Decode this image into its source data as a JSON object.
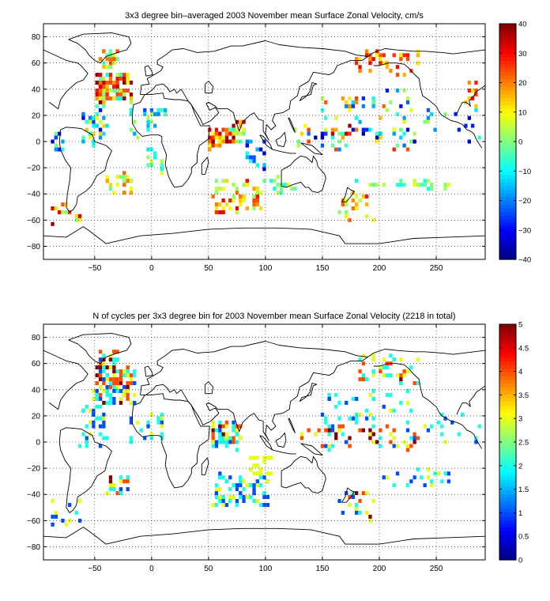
{
  "figure": {
    "background": "#ffffff",
    "land_color": "#ffffff",
    "coast_color": "#000000",
    "colormap": "jet"
  },
  "chart_data": [
    {
      "type": "heatmap",
      "title": "3x3 degree bin–averaged 2003 November mean Surface Zonal Velocity, cm/s",
      "xlabel": "",
      "ylabel": "",
      "xlim": [
        -95,
        293
      ],
      "ylim": [
        -90,
        90
      ],
      "xticks": [
        -50,
        0,
        50,
        100,
        150,
        200,
        250
      ],
      "yticks": [
        -80,
        -60,
        -40,
        -20,
        0,
        20,
        40,
        60,
        80
      ],
      "grid": true,
      "grid_style": "dotted",
      "bin_size_deg": 3,
      "colorbar": {
        "min": -40,
        "max": 40,
        "ticks": [
          -40,
          -30,
          -20,
          -10,
          0,
          10,
          20,
          30,
          40
        ]
      },
      "clusters": [
        {
          "lon": [
            -48,
            -18
          ],
          "lat": [
            30,
            52
          ],
          "count": 110,
          "values": [
            -10,
            40
          ]
        },
        {
          "lon": [
            -60,
            -40
          ],
          "lat": [
            -5,
            28
          ],
          "count": 35,
          "values": [
            -30,
            15
          ]
        },
        {
          "lon": [
            -45,
            -30
          ],
          "lat": [
            55,
            70
          ],
          "count": 25,
          "values": [
            -5,
            25
          ]
        },
        {
          "lon": [
            -20,
            12
          ],
          "lat": [
            0,
            25
          ],
          "count": 25,
          "values": [
            -25,
            5
          ]
        },
        {
          "lon": [
            -5,
            12
          ],
          "lat": [
            -30,
            -5
          ],
          "count": 12,
          "values": [
            -15,
            10
          ]
        },
        {
          "lon": [
            -40,
            -15
          ],
          "lat": [
            -40,
            -25
          ],
          "count": 25,
          "values": [
            -5,
            25
          ]
        },
        {
          "lon": [
            -88,
            -62
          ],
          "lat": [
            -65,
            -45
          ],
          "count": 14,
          "values": [
            -5,
            40
          ]
        },
        {
          "lon": [
            -90,
            -75
          ],
          "lat": [
            -10,
            10
          ],
          "count": 10,
          "values": [
            -40,
            5
          ]
        },
        {
          "lon": [
            50,
            70
          ],
          "lat": [
            -5,
            10
          ],
          "count": 45,
          "values": [
            5,
            40
          ]
        },
        {
          "lon": [
            68,
            82
          ],
          "lat": [
            -2,
            15
          ],
          "count": 25,
          "values": [
            -10,
            40
          ]
        },
        {
          "lon": [
            55,
            95
          ],
          "lat": [
            -55,
            -30
          ],
          "count": 70,
          "values": [
            0,
            32
          ]
        },
        {
          "lon": [
            82,
            100
          ],
          "lat": [
            -20,
            5
          ],
          "count": 20,
          "values": [
            -35,
            -5
          ]
        },
        {
          "lon": [
            95,
            130
          ],
          "lat": [
            -40,
            -25
          ],
          "count": 15,
          "values": [
            -10,
            10
          ]
        },
        {
          "lon": [
            125,
            230
          ],
          "lat": [
            -5,
            12
          ],
          "count": 60,
          "values": [
            -40,
            40
          ]
        },
        {
          "lon": [
            180,
            235
          ],
          "lat": [
            50,
            68
          ],
          "count": 40,
          "values": [
            10,
            32
          ]
        },
        {
          "lon": [
            150,
            230
          ],
          "lat": [
            15,
            38
          ],
          "count": 40,
          "values": [
            -30,
            25
          ]
        },
        {
          "lon": [
            160,
            200
          ],
          "lat": [
            -60,
            -40
          ],
          "count": 20,
          "values": [
            0,
            30
          ]
        },
        {
          "lon": [
            175,
            262
          ],
          "lat": [
            -35,
            -30
          ],
          "count": 25,
          "values": [
            -10,
            10
          ]
        },
        {
          "lon": [
            240,
            290
          ],
          "lat": [
            0,
            25
          ],
          "count": 15,
          "values": [
            -35,
            5
          ]
        },
        {
          "lon": [
            275,
            292
          ],
          "lat": [
            25,
            45
          ],
          "count": 10,
          "values": [
            5,
            30
          ]
        }
      ]
    },
    {
      "type": "heatmap",
      "title": "N of cycles per 3x3 degree bin for 2003 November mean Surface Zonal Velocity (2218 in total)",
      "xlabel": "",
      "ylabel": "",
      "xlim": [
        -95,
        293
      ],
      "ylim": [
        -90,
        90
      ],
      "xticks": [
        -50,
        0,
        50,
        100,
        150,
        200,
        250
      ],
      "yticks": [
        -80,
        -60,
        -40,
        -20,
        0,
        20,
        40,
        60,
        80
      ],
      "grid": true,
      "grid_style": "dotted",
      "bin_size_deg": 3,
      "colorbar": {
        "min": 0,
        "max": 5,
        "ticks": [
          0,
          0.5,
          1,
          1.5,
          2,
          2.5,
          3,
          3.5,
          4,
          4.5,
          5
        ]
      },
      "clusters": [
        {
          "lon": [
            -50,
            -15
          ],
          "lat": [
            30,
            58
          ],
          "count": 110,
          "values": [
            1,
            5
          ]
        },
        {
          "lon": [
            -62,
            -40
          ],
          "lat": [
            -5,
            28
          ],
          "count": 35,
          "values": [
            1,
            3
          ]
        },
        {
          "lon": [
            -45,
            -30
          ],
          "lat": [
            55,
            70
          ],
          "count": 20,
          "values": [
            1,
            5
          ]
        },
        {
          "lon": [
            -20,
            12
          ],
          "lat": [
            0,
            25
          ],
          "count": 25,
          "values": [
            1,
            3
          ]
        },
        {
          "lon": [
            -40,
            -15
          ],
          "lat": [
            -40,
            -25
          ],
          "count": 25,
          "values": [
            1,
            5
          ]
        },
        {
          "lon": [
            -88,
            -62
          ],
          "lat": [
            -65,
            -45
          ],
          "count": 12,
          "values": [
            1,
            3
          ]
        },
        {
          "lon": [
            52,
            78
          ],
          "lat": [
            -5,
            15
          ],
          "count": 60,
          "values": [
            1,
            5
          ]
        },
        {
          "lon": [
            55,
            105
          ],
          "lat": [
            -48,
            -25
          ],
          "count": 70,
          "values": [
            1,
            3
          ]
        },
        {
          "lon": [
            85,
            105
          ],
          "lat": [
            -25,
            -10
          ],
          "count": 25,
          "values": [
            3,
            3
          ]
        },
        {
          "lon": [
            130,
            235
          ],
          "lat": [
            -5,
            12
          ],
          "count": 60,
          "values": [
            1,
            5
          ]
        },
        {
          "lon": [
            180,
            235
          ],
          "lat": [
            45,
            65
          ],
          "count": 45,
          "values": [
            1,
            5
          ]
        },
        {
          "lon": [
            150,
            230
          ],
          "lat": [
            15,
            38
          ],
          "count": 40,
          "values": [
            1,
            3
          ]
        },
        {
          "lon": [
            165,
            195
          ],
          "lat": [
            -62,
            -38
          ],
          "count": 20,
          "values": [
            1,
            5
          ]
        },
        {
          "lon": [
            200,
            262
          ],
          "lat": [
            -35,
            -20
          ],
          "count": 20,
          "values": [
            1,
            3
          ]
        },
        {
          "lon": [
            240,
            290
          ],
          "lat": [
            0,
            25
          ],
          "count": 15,
          "values": [
            1,
            3
          ]
        }
      ]
    }
  ]
}
